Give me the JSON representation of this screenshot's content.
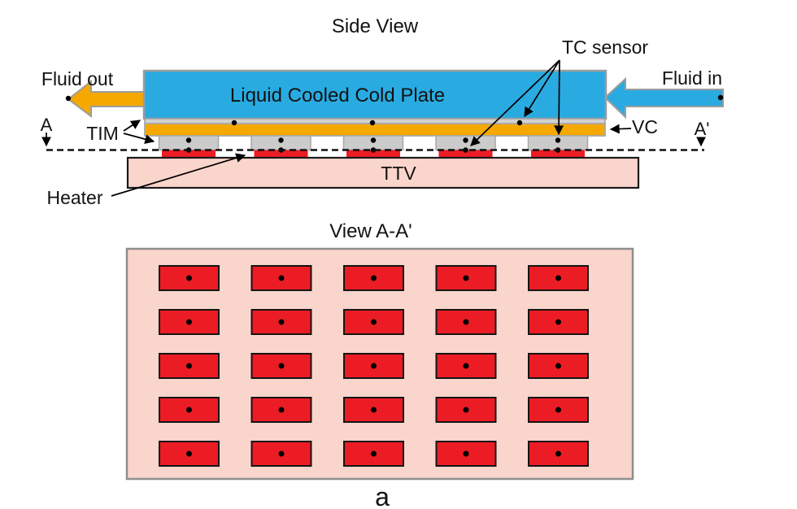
{
  "side_view": {
    "title": "Side View",
    "cold_plate_label": "Liquid Cooled Cold Plate",
    "fluid_out_label": "Fluid out",
    "fluid_in_label": "Fluid in",
    "tc_sensor_label": "TC sensor",
    "tim_label": "TIM",
    "vc_label": "VC",
    "ttv_label": "TTV",
    "heater_label": "Heater",
    "section_start_label": "A",
    "section_end_label": "A'",
    "heater_stack": {
      "count": 5
    },
    "tc_dot_columns": 3
  },
  "section_view": {
    "title": "View A-A'",
    "rows": 5,
    "cols": 5
  },
  "figure_label": "a",
  "colors": {
    "coolant-blue": "#29ABE2",
    "vc-orange": "#F5A800",
    "heater-red": "#EC1C24",
    "board-pink": "#FAD5CB",
    "tim-gray": "#CBCBCB"
  }
}
